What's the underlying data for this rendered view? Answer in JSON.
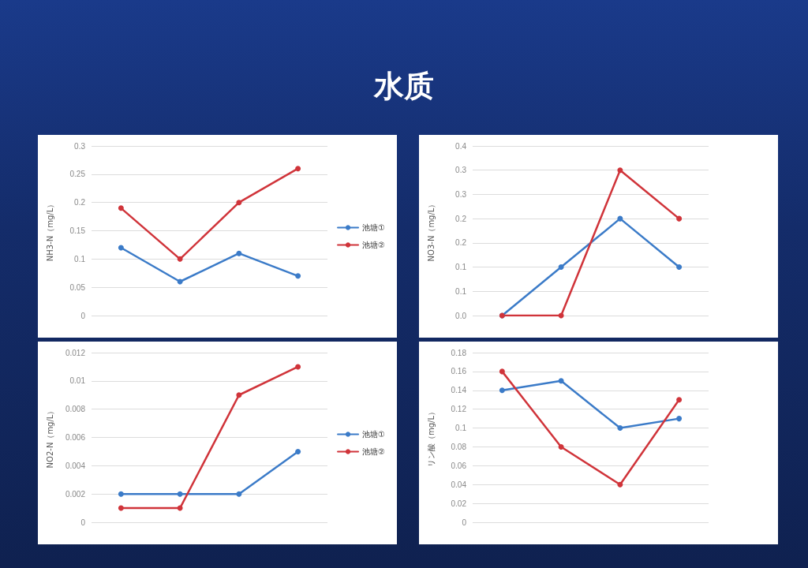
{
  "chart_data": [
    {
      "type": "other",
      "title": "水质"
    },
    {
      "type": "line",
      "ylabel": "NH3-N（mg/L）",
      "categories": [
        null,
        null,
        null,
        null
      ],
      "series": [
        {
          "name": "池塘①",
          "color": "#3b7bc8",
          "values": [
            0.12,
            0.06,
            0.11,
            0.07
          ]
        },
        {
          "name": "池塘②",
          "color": "#d0343a",
          "values": [
            0.19,
            0.1,
            0.2,
            0.26
          ]
        }
      ],
      "ylim": [
        0,
        0.3
      ],
      "yticks": [
        0,
        0.05,
        0.1,
        0.15,
        0.2,
        0.25,
        0.3
      ],
      "grid": "y",
      "legend": "right",
      "marker": "circle",
      "tick_labels": "y"
    },
    {
      "type": "line",
      "ylabel": "NO3-N（mg/L）",
      "categories": [
        null,
        null,
        null,
        null
      ],
      "series": [
        {
          "color": "#3b7bc8",
          "values": [
            0,
            0.1,
            0.2,
            0.1
          ]
        },
        {
          "color": "#d0343a",
          "values": [
            0,
            0,
            0.3,
            0.2
          ]
        }
      ],
      "ylim": [
        0,
        0.35
      ],
      "yticks": [
        {
          "value": 0,
          "label": "0.0"
        },
        {
          "value": 0.05,
          "label": "0.1"
        },
        {
          "value": 0.1,
          "label": "0.1"
        },
        {
          "value": 0.15,
          "label": "0.2"
        },
        {
          "value": 0.2,
          "label": "0.2"
        },
        {
          "value": 0.25,
          "label": "0.3"
        },
        {
          "value": 0.3,
          "label": "0.3"
        },
        {
          "value": 0.35,
          "label": "0.4"
        }
      ],
      "grid": "y",
      "marker": "circle",
      "tick_labels": "y"
    },
    {
      "type": "line",
      "ylabel": "NO2-N（mg/L）",
      "categories": [
        null,
        null,
        null,
        null
      ],
      "series": [
        {
          "name": "池塘①",
          "color": "#3b7bc8",
          "values": [
            0.002,
            0.002,
            0.002,
            0.005
          ]
        },
        {
          "name": "池塘②",
          "color": "#d0343a",
          "values": [
            0.001,
            0.001,
            0.009,
            0.011
          ]
        }
      ],
      "ylim": [
        0,
        0.012
      ],
      "yticks": [
        0,
        0.002,
        0.004,
        0.006,
        0.008,
        0.01,
        0.012
      ],
      "grid": "y",
      "legend": "right",
      "marker": "circle",
      "tick_labels": "y"
    },
    {
      "type": "line",
      "ylabel": "リン酸（mg/L）",
      "categories": [
        null,
        null,
        null,
        null
      ],
      "series": [
        {
          "color": "#3b7bc8",
          "values": [
            0.14,
            0.15,
            0.1,
            0.11
          ]
        },
        {
          "color": "#d0343a",
          "values": [
            0.16,
            0.08,
            0.04,
            0.13
          ]
        }
      ],
      "ylim": [
        0,
        0.18
      ],
      "yticks": [
        0,
        0.02,
        0.04,
        0.06,
        0.08,
        0.1,
        0.12,
        0.14,
        0.16,
        0.18
      ],
      "grid": "y",
      "marker": "circle",
      "tick_labels": "y"
    }
  ]
}
